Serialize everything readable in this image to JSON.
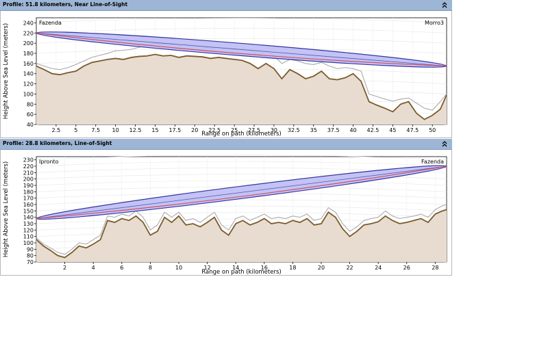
{
  "colors": {
    "titlebar": "#9eb6d6",
    "terrain_fill": "#e8dcd0",
    "terrain_line": "#7a5a2a",
    "clutter_line": "#b0b0b0",
    "fresnel_fill": "#b8b8f4",
    "fresnel_stroke": "#3333a0",
    "los_line": "#ce5060"
  },
  "icons": {
    "collapse": "double-chevron-up-icon"
  },
  "profiles": [
    {
      "title": "Profile: 51.8 kilometers, Near Line-of-Sight",
      "left_site": "Fazenda",
      "right_site": "Morro3",
      "chart_data": {
        "type": "line",
        "xlabel": "Range on path (kilometers)",
        "ylabel": "Height Above Sea Level (meters)",
        "xlim": [
          0,
          51.8
        ],
        "ylim": [
          40,
          250
        ],
        "xticks": [
          "2.5",
          "5",
          "7.5",
          "10",
          "12.5",
          "15",
          "17.5",
          "20",
          "22.5",
          "25",
          "27.5",
          "30",
          "32.5",
          "35",
          "37.5",
          "40",
          "42.5",
          "45",
          "47.5",
          "50"
        ],
        "yticks": [
          "40",
          "60",
          "80",
          "100",
          "120",
          "140",
          "160",
          "180",
          "200",
          "220",
          "240"
        ],
        "antenna_heights": [
          220,
          155
        ],
        "series": [
          {
            "kind": "clutter",
            "x": [
              0,
              1,
              2,
              3,
              4,
              5,
              6,
              7,
              8,
              9,
              10,
              11,
              12,
              13,
              14,
              15,
              16,
              17,
              18,
              19,
              20,
              21,
              22,
              23,
              24,
              25,
              26,
              27,
              28,
              29,
              30,
              31,
              32,
              33,
              34,
              35,
              36,
              37,
              38,
              39,
              40,
              41,
              42,
              43,
              44,
              45,
              46,
              47,
              48,
              49,
              50,
              51,
              51.8
            ],
            "y": [
              160,
              155,
              150,
              148,
              152,
              158,
              165,
              172,
              176,
              180,
              185,
              186,
              188,
              192,
              196,
              200,
              198,
              199,
              196,
              198,
              195,
              193,
              190,
              192,
              190,
              188,
              188,
              186,
              176,
              185,
              175,
              160,
              168,
              165,
              160,
              158,
              162,
              155,
              150,
              152,
              150,
              145,
              100,
              95,
              90,
              86,
              90,
              92,
              82,
              72,
              68,
              85,
              100
            ]
          },
          {
            "kind": "terrain",
            "x": [
              0,
              1,
              2,
              3,
              4,
              5,
              6,
              7,
              8,
              9,
              10,
              11,
              12,
              13,
              14,
              15,
              16,
              17,
              18,
              19,
              20,
              21,
              22,
              23,
              24,
              25,
              26,
              27,
              28,
              29,
              30,
              31,
              32,
              33,
              34,
              35,
              36,
              37,
              38,
              39,
              40,
              41,
              42,
              43,
              44,
              45,
              46,
              47,
              48,
              49,
              50,
              51,
              51.8
            ],
            "y": [
              155,
              148,
              140,
              138,
              142,
              145,
              155,
              162,
              165,
              168,
              170,
              168,
              172,
              174,
              175,
              178,
              175,
              176,
              172,
              175,
              174,
              173,
              170,
              172,
              170,
              168,
              166,
              160,
              150,
              160,
              150,
              130,
              148,
              140,
              130,
              135,
              145,
              130,
              128,
              132,
              140,
              125,
              85,
              78,
              72,
              65,
              80,
              85,
              62,
              50,
              58,
              70,
              98
            ]
          }
        ]
      }
    },
    {
      "title": "Profile: 28.8 kilometers, Line-of-Sight",
      "left_site": "Ipronto",
      "right_site": "Fazenda",
      "chart_data": {
        "type": "line",
        "xlabel": "Range on path (kilometers)",
        "ylabel": "Height Above Sea Level (meters)",
        "xlim": [
          0,
          28.8
        ],
        "ylim": [
          70,
          235
        ],
        "xticks": [
          "2",
          "4",
          "6",
          "8",
          "10",
          "12",
          "14",
          "16",
          "18",
          "20",
          "22",
          "24",
          "26",
          "28"
        ],
        "yticks": [
          "70",
          "80",
          "90",
          "100",
          "110",
          "120",
          "130",
          "140",
          "150",
          "160",
          "170",
          "180",
          "190",
          "200",
          "210",
          "220",
          "230"
        ],
        "antenna_heights": [
          138,
          220
        ],
        "series": [
          {
            "kind": "clutter",
            "x": [
              0,
              0.5,
              1,
              1.5,
              2,
              2.5,
              3,
              3.5,
              4,
              4.5,
              5,
              5.5,
              6,
              6.5,
              7,
              7.5,
              8,
              8.5,
              9,
              9.5,
              10,
              10.5,
              11,
              11.5,
              12,
              12.5,
              13,
              13.5,
              14,
              14.5,
              15,
              15.5,
              16,
              16.5,
              17,
              17.5,
              18,
              18.5,
              19,
              19.5,
              20,
              20.5,
              21,
              21.5,
              22,
              22.5,
              23,
              23.5,
              24,
              24.5,
              25,
              25.5,
              26,
              26.5,
              27,
              27.5,
              28,
              28.5,
              28.8
            ],
            "y": [
              108,
              98,
              92,
              85,
              82,
              90,
              100,
              98,
              105,
              112,
              142,
              140,
              145,
              142,
              150,
              140,
              120,
              128,
              148,
              140,
              148,
              135,
              138,
              132,
              140,
              148,
              128,
              120,
              138,
              142,
              135,
              140,
              145,
              138,
              140,
              138,
              142,
              140,
              145,
              135,
              138,
              155,
              148,
              130,
              118,
              125,
              135,
              138,
              140,
              150,
              142,
              138,
              140,
              142,
              145,
              140,
              152,
              158,
              160
            ]
          },
          {
            "kind": "terrain",
            "x": [
              0,
              0.5,
              1,
              1.5,
              2,
              2.5,
              3,
              3.5,
              4,
              4.5,
              5,
              5.5,
              6,
              6.5,
              7,
              7.5,
              8,
              8.5,
              9,
              9.5,
              10,
              10.5,
              11,
              11.5,
              12,
              12.5,
              13,
              13.5,
              14,
              14.5,
              15,
              15.5,
              16,
              16.5,
              17,
              17.5,
              18,
              18.5,
              19,
              19.5,
              20,
              20.5,
              21,
              21.5,
              22,
              22.5,
              23,
              23.5,
              24,
              24.5,
              25,
              25.5,
              26,
              26.5,
              27,
              27.5,
              28,
              28.5,
              28.8
            ],
            "y": [
              105,
              95,
              88,
              80,
              77,
              85,
              95,
              92,
              98,
              105,
              135,
              132,
              138,
              135,
              142,
              132,
              112,
              118,
              140,
              132,
              142,
              128,
              130,
              125,
              132,
              140,
              120,
              112,
              130,
              135,
              128,
              132,
              138,
              130,
              132,
              130,
              135,
              132,
              138,
              128,
              130,
              148,
              140,
              122,
              110,
              118,
              128,
              130,
              133,
              142,
              135,
              130,
              132,
              135,
              138,
              132,
              145,
              150,
              152
            ]
          }
        ]
      }
    }
  ]
}
